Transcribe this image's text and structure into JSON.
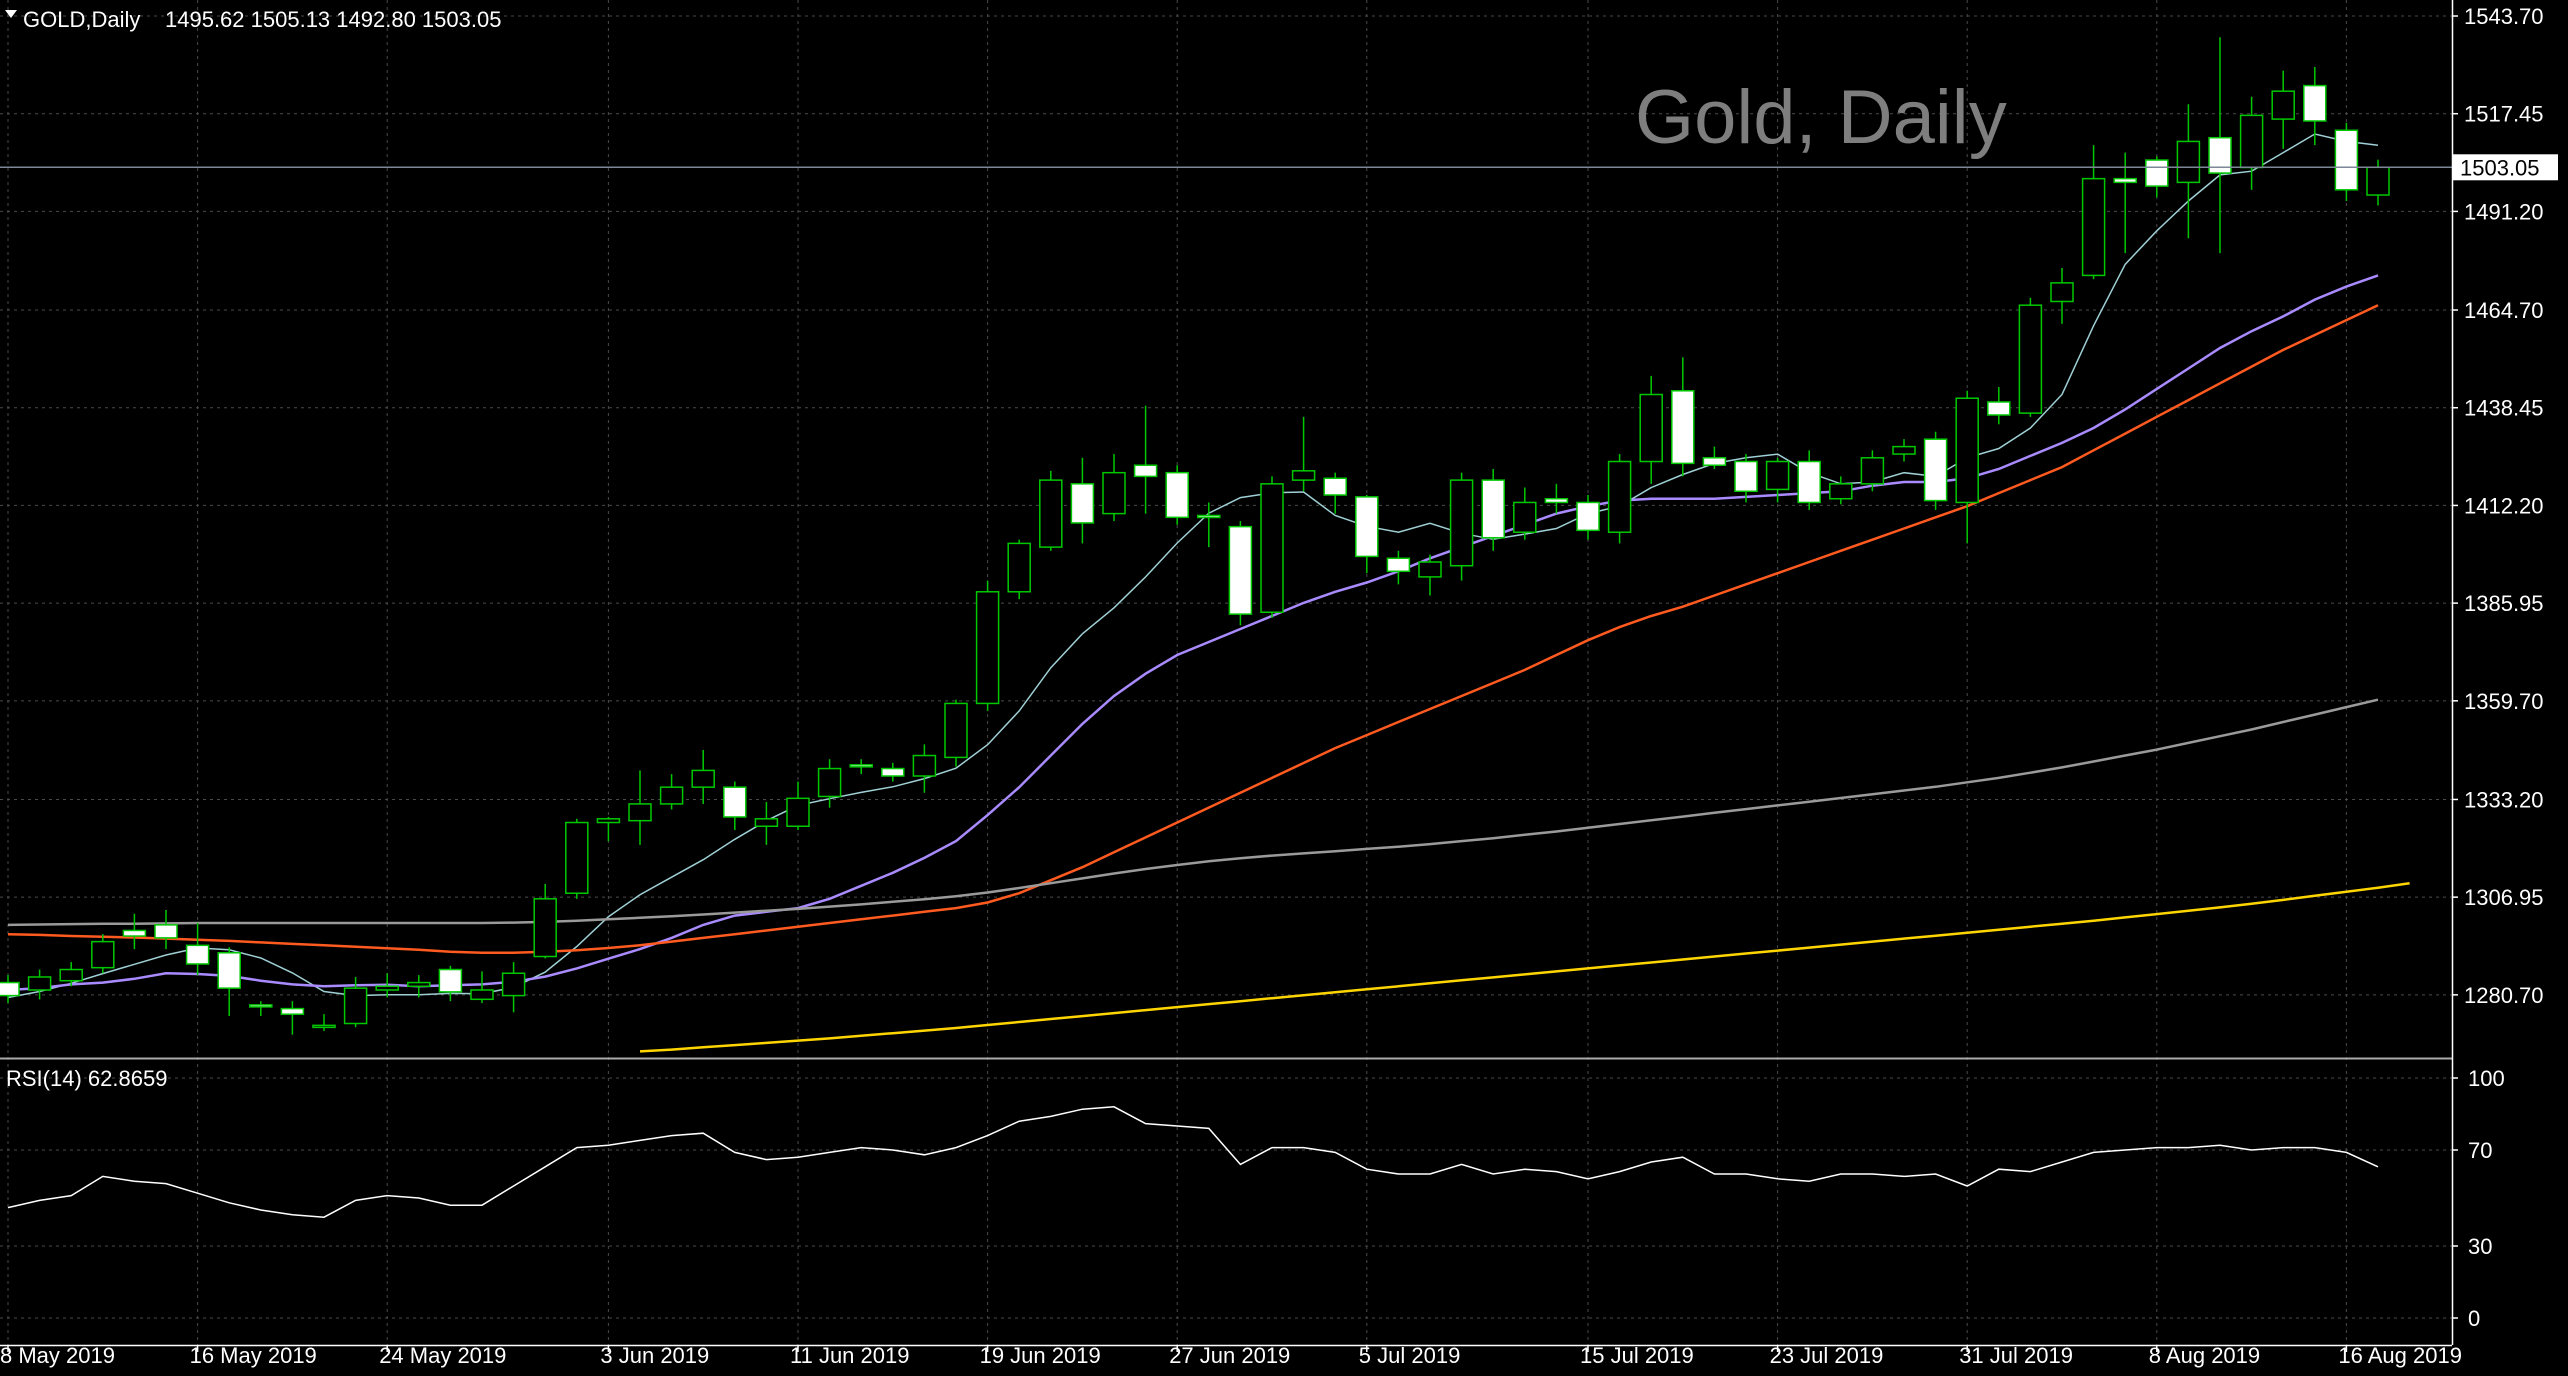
{
  "header": {
    "symbol_info": "GOLD,Daily",
    "ohlc": "1495.62 1505.13 1492.80 1503.05",
    "watermark": "Gold, Daily"
  },
  "current_price_label": "1503.05",
  "rsi_panel": {
    "label": "RSI(14) 62.8659",
    "levels": [
      "100",
      "70",
      "30",
      "0"
    ]
  },
  "x_labels": [
    "8 May 2019",
    "16 May 2019",
    "24 May 2019",
    "3 Jun 2019",
    "11 Jun 2019",
    "19 Jun 2019",
    "27 Jun 2019",
    "5 Jul 2019",
    "15 Jul 2019",
    "23 Jul 2019",
    "31 Jul 2019",
    "8 Aug 2019",
    "16 Aug 2019"
  ],
  "y_labels": [
    "1543.70",
    "1517.45",
    "1491.20",
    "1464.70",
    "1438.45",
    "1412.20",
    "1385.95",
    "1359.70",
    "1333.20",
    "1306.95",
    "1280.70"
  ],
  "colors": {
    "background": "#000000",
    "grid": "#4a4a4a",
    "bull_candle": "#00c800",
    "bear_candle": "#ffffff",
    "ma_fast": "#9fd0d5",
    "ma_medium": "#a98bff",
    "ma_slow": "#ff5a1f",
    "ma_100": "#9a9a9a",
    "ma_200": "#ffd500",
    "rsi_line": "#ffffff"
  },
  "chart_data": [
    {
      "type": "candlestick",
      "title": "Gold, Daily",
      "ylim": [
        1264,
        1548
      ],
      "x_tick_labels": [
        "8 May 2019",
        "16 May 2019",
        "24 May 2019",
        "3 Jun 2019",
        "11 Jun 2019",
        "19 Jun 2019",
        "27 Jun 2019",
        "5 Jul 2019",
        "15 Jul 2019",
        "23 Jul 2019",
        "31 Jul 2019",
        "8 Aug 2019",
        "16 Aug 2019"
      ],
      "candles": [
        {
          "o": 1284.0,
          "h": 1286.0,
          "l": 1278.5,
          "c": 1280.5
        },
        {
          "o": 1282.0,
          "h": 1287.5,
          "l": 1279.5,
          "c": 1285.5
        },
        {
          "o": 1284.5,
          "h": 1289.5,
          "l": 1283.0,
          "c": 1287.5
        },
        {
          "o": 1288.0,
          "h": 1297.0,
          "l": 1286.5,
          "c": 1295.0
        },
        {
          "o": 1298.0,
          "h": 1302.5,
          "l": 1293.0,
          "c": 1296.5
        },
        {
          "o": 1299.5,
          "h": 1303.5,
          "l": 1293.0,
          "c": 1296.0
        },
        {
          "o": 1294.0,
          "h": 1300.0,
          "l": 1286.0,
          "c": 1289.0
        },
        {
          "o": 1292.0,
          "h": 1293.5,
          "l": 1275.0,
          "c": 1282.5
        },
        {
          "o": 1278.0,
          "h": 1279.0,
          "l": 1275.0,
          "c": 1277.5
        },
        {
          "o": 1277.0,
          "h": 1279.0,
          "l": 1270.0,
          "c": 1275.5
        },
        {
          "o": 1272.5,
          "h": 1275.5,
          "l": 1271.0,
          "c": 1272.5
        },
        {
          "o": 1273.0,
          "h": 1285.5,
          "l": 1272.0,
          "c": 1282.5
        },
        {
          "o": 1282.0,
          "h": 1286.5,
          "l": 1280.0,
          "c": 1283.0
        },
        {
          "o": 1283.0,
          "h": 1286.0,
          "l": 1280.0,
          "c": 1284.0
        },
        {
          "o": 1287.5,
          "h": 1288.5,
          "l": 1279.0,
          "c": 1281.5
        },
        {
          "o": 1279.5,
          "h": 1287.0,
          "l": 1278.5,
          "c": 1282.0
        },
        {
          "o": 1280.5,
          "h": 1289.5,
          "l": 1276.0,
          "c": 1286.5
        },
        {
          "o": 1291.0,
          "h": 1310.5,
          "l": 1290.5,
          "c": 1306.5
        },
        {
          "o": 1308.0,
          "h": 1328.0,
          "l": 1306.5,
          "c": 1327.0
        },
        {
          "o": 1327.0,
          "h": 1328.5,
          "l": 1322.0,
          "c": 1328.0
        },
        {
          "o": 1327.5,
          "h": 1341.0,
          "l": 1321.0,
          "c": 1332.0
        },
        {
          "o": 1332.0,
          "h": 1340.0,
          "l": 1330.5,
          "c": 1336.5
        },
        {
          "o": 1336.5,
          "h": 1346.5,
          "l": 1332.0,
          "c": 1341.0
        },
        {
          "o": 1336.5,
          "h": 1338.0,
          "l": 1325.0,
          "c": 1328.5
        },
        {
          "o": 1326.0,
          "h": 1332.5,
          "l": 1321.0,
          "c": 1328.0
        },
        {
          "o": 1326.0,
          "h": 1338.0,
          "l": 1325.0,
          "c": 1333.5
        },
        {
          "o": 1334.0,
          "h": 1344.0,
          "l": 1331.0,
          "c": 1341.5
        },
        {
          "o": 1342.5,
          "h": 1344.0,
          "l": 1340.0,
          "c": 1342.0
        },
        {
          "o": 1341.5,
          "h": 1343.0,
          "l": 1338.0,
          "c": 1339.5
        },
        {
          "o": 1339.5,
          "h": 1348.0,
          "l": 1335.0,
          "c": 1345.0
        },
        {
          "o": 1344.5,
          "h": 1360.0,
          "l": 1342.0,
          "c": 1359.0
        },
        {
          "o": 1359.0,
          "h": 1392.0,
          "l": 1357.0,
          "c": 1389.0
        },
        {
          "o": 1389.0,
          "h": 1403.0,
          "l": 1387.0,
          "c": 1402.0
        },
        {
          "o": 1401.0,
          "h": 1421.5,
          "l": 1400.0,
          "c": 1419.0
        },
        {
          "o": 1418.0,
          "h": 1425.0,
          "l": 1402.0,
          "c": 1407.5
        },
        {
          "o": 1410.0,
          "h": 1426.0,
          "l": 1408.0,
          "c": 1421.0
        },
        {
          "o": 1423.0,
          "h": 1439.0,
          "l": 1410.0,
          "c": 1420.0
        },
        {
          "o": 1421.0,
          "h": 1423.0,
          "l": 1407.0,
          "c": 1409.0
        },
        {
          "o": 1409.5,
          "h": 1413.0,
          "l": 1401.0,
          "c": 1409.0
        },
        {
          "o": 1406.5,
          "h": 1408.0,
          "l": 1380.0,
          "c": 1383.0
        },
        {
          "o": 1383.5,
          "h": 1420.0,
          "l": 1382.0,
          "c": 1418.0
        },
        {
          "o": 1419.0,
          "h": 1436.0,
          "l": 1416.0,
          "c": 1421.5
        },
        {
          "o": 1419.5,
          "h": 1421.0,
          "l": 1410.0,
          "c": 1415.0
        },
        {
          "o": 1414.5,
          "h": 1415.0,
          "l": 1394.0,
          "c": 1398.5
        },
        {
          "o": 1398.0,
          "h": 1400.0,
          "l": 1391.0,
          "c": 1394.5
        },
        {
          "o": 1393.0,
          "h": 1399.0,
          "l": 1388.0,
          "c": 1397.0
        },
        {
          "o": 1396.0,
          "h": 1421.0,
          "l": 1392.0,
          "c": 1419.0
        },
        {
          "o": 1419.0,
          "h": 1422.0,
          "l": 1400.0,
          "c": 1403.5
        },
        {
          "o": 1405.0,
          "h": 1417.0,
          "l": 1403.0,
          "c": 1413.0
        },
        {
          "o": 1414.0,
          "h": 1418.0,
          "l": 1410.0,
          "c": 1413.0
        },
        {
          "o": 1413.0,
          "h": 1415.0,
          "l": 1403.0,
          "c": 1405.5
        },
        {
          "o": 1405.0,
          "h": 1426.0,
          "l": 1402.0,
          "c": 1424.0
        },
        {
          "o": 1424.0,
          "h": 1447.0,
          "l": 1418.0,
          "c": 1442.0
        },
        {
          "o": 1443.0,
          "h": 1452.0,
          "l": 1420.0,
          "c": 1423.5
        },
        {
          "o": 1425.0,
          "h": 1428.0,
          "l": 1422.0,
          "c": 1423.0
        },
        {
          "o": 1424.0,
          "h": 1426.0,
          "l": 1413.0,
          "c": 1416.0
        },
        {
          "o": 1416.5,
          "h": 1425.0,
          "l": 1413.0,
          "c": 1424.0
        },
        {
          "o": 1424.0,
          "h": 1427.0,
          "l": 1411.0,
          "c": 1413.0
        },
        {
          "o": 1414.0,
          "h": 1420.0,
          "l": 1412.5,
          "c": 1418.0
        },
        {
          "o": 1418.0,
          "h": 1427.0,
          "l": 1416.0,
          "c": 1425.0
        },
        {
          "o": 1426.0,
          "h": 1430.0,
          "l": 1424.0,
          "c": 1428.0
        },
        {
          "o": 1430.0,
          "h": 1432.0,
          "l": 1411.0,
          "c": 1413.5
        },
        {
          "o": 1413.0,
          "h": 1443.0,
          "l": 1402.0,
          "c": 1441.0
        },
        {
          "o": 1440.0,
          "h": 1444.0,
          "l": 1434.0,
          "c": 1436.5
        },
        {
          "o": 1437.0,
          "h": 1468.0,
          "l": 1436.0,
          "c": 1466.0
        },
        {
          "o": 1467.0,
          "h": 1476.0,
          "l": 1461.0,
          "c": 1472.0
        },
        {
          "o": 1474.0,
          "h": 1509.0,
          "l": 1473.0,
          "c": 1500.0
        },
        {
          "o": 1500.0,
          "h": 1507.0,
          "l": 1480.0,
          "c": 1499.0
        },
        {
          "o": 1505.0,
          "h": 1506.0,
          "l": 1495.0,
          "c": 1498.0
        },
        {
          "o": 1499.0,
          "h": 1520.0,
          "l": 1484.0,
          "c": 1510.0
        },
        {
          "o": 1511.0,
          "h": 1538.0,
          "l": 1480.0,
          "c": 1501.5
        },
        {
          "o": 1503.0,
          "h": 1522.0,
          "l": 1497.0,
          "c": 1517.0
        },
        {
          "o": 1516.0,
          "h": 1529.0,
          "l": 1508.0,
          "c": 1523.5
        },
        {
          "o": 1525.0,
          "h": 1530.0,
          "l": 1509.0,
          "c": 1515.5
        },
        {
          "o": 1513.0,
          "h": 1515.0,
          "l": 1494.0,
          "c": 1497.0
        },
        {
          "o": 1495.6,
          "h": 1505.1,
          "l": 1492.8,
          "c": 1503.05
        }
      ],
      "series": [
        {
          "type": "line",
          "color": "#9fd0d5",
          "values": [
            1280.0,
            1281.6,
            1283.8,
            1286.4,
            1288.9,
            1291.4,
            1293.3,
            1292.8,
            1290.6,
            1286.6,
            1281.6,
            1280.5,
            1280.7,
            1280.7,
            1281.1,
            1281.0,
            1282.7,
            1286.8,
            1293.7,
            1301.7,
            1307.6,
            1312.3,
            1317.0,
            1322.5,
            1327.5,
            1331.6,
            1333.4,
            1335.1,
            1336.6,
            1338.8,
            1341.6,
            1347.9,
            1357.0,
            1368.6,
            1377.7,
            1384.7,
            1393.0,
            1402.1,
            1410.1,
            1414.3,
            1415.6,
            1415.8,
            1409.5,
            1406.6,
            1405.0,
            1407.4,
            1404.7,
            1403.1,
            1404.5,
            1406.0,
            1410.0,
            1412.0,
            1417.0,
            1420.5,
            1423.5,
            1425.0,
            1426.0,
            1421.0,
            1418.0,
            1418.5,
            1421.0,
            1420.0,
            1425.0,
            1427.5,
            1433.0,
            1442.0,
            1460.5,
            1477.0,
            1486.0,
            1494.0,
            1501.0,
            1502.0,
            1507.0,
            1512.0,
            1510.0,
            1509.0
          ]
        },
        {
          "type": "line",
          "color": "#a98bff",
          "values": [
            1282.0,
            1282.5,
            1283.5,
            1284.0,
            1285.0,
            1286.5,
            1286.3,
            1285.8,
            1284.5,
            1283.5,
            1283.0,
            1283.3,
            1283.4,
            1283.0,
            1283.3,
            1283.5,
            1284.2,
            1285.6,
            1287.8,
            1290.4,
            1293.0,
            1296.0,
            1299.5,
            1302.0,
            1303.0,
            1304.0,
            1306.5,
            1310.0,
            1313.5,
            1317.5,
            1322.0,
            1329.0,
            1336.5,
            1345.0,
            1353.5,
            1361.0,
            1367.0,
            1372.0,
            1375.5,
            1379.0,
            1382.5,
            1386.0,
            1389.0,
            1391.5,
            1394.5,
            1398.0,
            1401.0,
            1404.0,
            1407.0,
            1410.0,
            1412.0,
            1413.5,
            1414.0,
            1414.0,
            1414.0,
            1414.5,
            1415.0,
            1415.5,
            1416.0,
            1417.5,
            1418.5,
            1418.5,
            1419.5,
            1422.0,
            1425.5,
            1429.0,
            1433.0,
            1438.0,
            1443.5,
            1449.0,
            1454.5,
            1459.0,
            1463.0,
            1467.5,
            1471.0,
            1474.0
          ]
        },
        {
          "type": "line",
          "color": "#ff5a1f",
          "values": [
            1297.0,
            1296.8,
            1296.5,
            1296.3,
            1296.1,
            1295.8,
            1295.5,
            1295.2,
            1294.8,
            1294.4,
            1294.0,
            1293.6,
            1293.2,
            1292.8,
            1292.3,
            1292.0,
            1292.0,
            1292.3,
            1292.7,
            1293.3,
            1294.0,
            1295.0,
            1296.0,
            1297.0,
            1298.0,
            1299.0,
            1300.0,
            1301.0,
            1302.0,
            1303.0,
            1304.0,
            1305.5,
            1308.0,
            1311.5,
            1315.0,
            1319.0,
            1323.0,
            1327.0,
            1331.0,
            1335.0,
            1339.0,
            1343.0,
            1347.0,
            1350.5,
            1354.0,
            1357.5,
            1361.0,
            1364.5,
            1368.0,
            1372.0,
            1376.0,
            1379.5,
            1382.5,
            1385.0,
            1388.0,
            1391.0,
            1394.0,
            1397.0,
            1400.0,
            1403.0,
            1406.0,
            1409.0,
            1412.0,
            1415.5,
            1419.0,
            1422.5,
            1427.0,
            1431.5,
            1436.0,
            1440.5,
            1445.0,
            1449.5,
            1454.0,
            1458.0,
            1462.0,
            1466.0
          ]
        },
        {
          "type": "line",
          "color": "#9a9a9a",
          "values": [
            1299.5,
            1299.6,
            1299.7,
            1299.8,
            1299.8,
            1299.9,
            1300.0,
            1300.0,
            1300.0,
            1300.0,
            1300.0,
            1300.0,
            1300.0,
            1300.0,
            1300.0,
            1300.0,
            1300.1,
            1300.3,
            1300.6,
            1301.0,
            1301.4,
            1301.8,
            1302.3,
            1302.8,
            1303.3,
            1303.8,
            1304.4,
            1305.0,
            1305.7,
            1306.4,
            1307.2,
            1308.2,
            1309.4,
            1310.7,
            1312.0,
            1313.3,
            1314.5,
            1315.6,
            1316.6,
            1317.4,
            1318.1,
            1318.7,
            1319.3,
            1319.9,
            1320.5,
            1321.2,
            1322.0,
            1322.8,
            1323.7,
            1324.6,
            1325.6,
            1326.6,
            1327.6,
            1328.6,
            1329.6,
            1330.6,
            1331.6,
            1332.6,
            1333.6,
            1334.6,
            1335.6,
            1336.6,
            1337.8,
            1339.0,
            1340.4,
            1341.8,
            1343.4,
            1345.0,
            1346.6,
            1348.4,
            1350.2,
            1352.0,
            1354.0,
            1356.0,
            1358.0,
            1360.0
          ]
        },
        {
          "type": "line",
          "color": "#ffd500",
          "start_index": 20,
          "values": [
            1265.5,
            1266.0,
            1266.6,
            1267.2,
            1267.8,
            1268.4,
            1269.0,
            1269.7,
            1270.4,
            1271.1,
            1271.8,
            1272.6,
            1273.4,
            1274.2,
            1275.0,
            1275.8,
            1276.6,
            1277.4,
            1278.2,
            1279.0,
            1279.8,
            1280.6,
            1281.4,
            1282.2,
            1283.0,
            1283.8,
            1284.6,
            1285.4,
            1286.2,
            1287.0,
            1287.8,
            1288.6,
            1289.4,
            1290.2,
            1291.0,
            1291.8,
            1292.6,
            1293.4,
            1294.2,
            1295.0,
            1295.8,
            1296.6,
            1297.4,
            1298.2,
            1299.0,
            1299.8,
            1300.6,
            1301.5,
            1302.4,
            1303.3,
            1304.2,
            1305.2,
            1306.2,
            1307.3,
            1308.4,
            1309.5,
            1310.7
          ]
        }
      ],
      "current_price": 1503.05
    },
    {
      "type": "line",
      "title": "RSI(14) 62.8659",
      "ylim": [
        0,
        100
      ],
      "levels": [
        100,
        70,
        30,
        0
      ],
      "values": [
        46,
        49,
        51,
        59,
        57,
        56,
        52,
        48,
        45,
        43,
        42,
        49,
        51,
        50,
        47,
        47,
        55,
        63,
        71,
        72,
        74,
        76,
        77,
        69,
        66,
        67,
        69,
        71,
        70,
        68,
        71,
        76,
        82,
        84,
        87,
        88,
        81,
        80,
        79,
        64,
        71,
        71,
        69,
        62,
        60,
        60,
        64,
        60,
        62,
        61,
        58,
        61,
        65,
        67,
        60,
        60,
        58,
        57,
        60,
        60,
        59,
        60,
        55,
        62,
        61,
        65,
        69,
        70,
        71,
        71,
        72,
        70,
        71,
        71,
        69,
        63
      ]
    }
  ]
}
